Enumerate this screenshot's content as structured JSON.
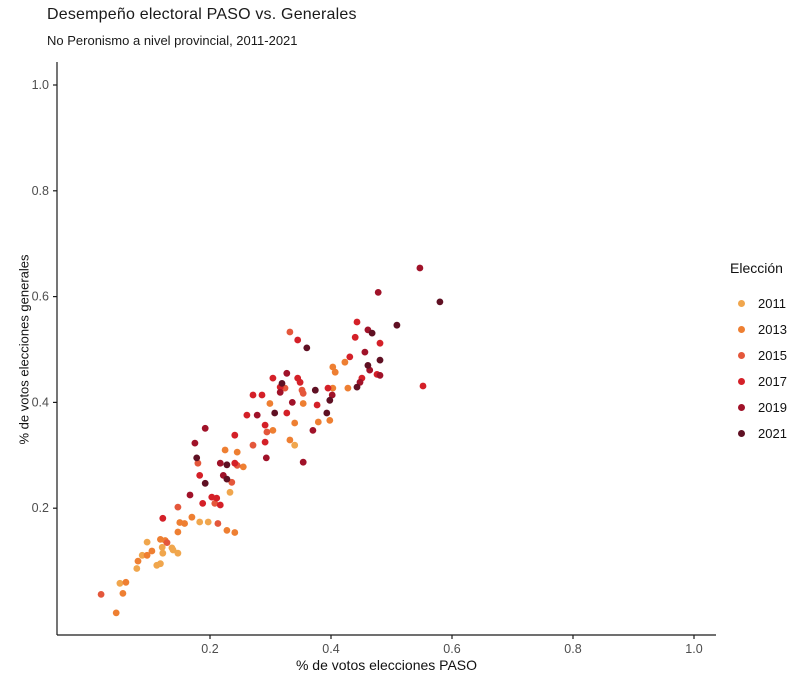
{
  "header": {
    "title": "Desempeño electoral PASO vs. Generales",
    "subtitle": "No Peronismo a nivel provincial, 2011-2021"
  },
  "chart_data": {
    "type": "scatter",
    "title": "Desempeño electoral PASO vs. Generales",
    "subtitle": "No Peronismo a nivel provincial, 2011-2021",
    "xlabel": "% de votos elecciones PASO",
    "ylabel": "% de votos elecciones generales",
    "xlim": [
      -0.05,
      1.04
    ],
    "ylim": [
      -0.04,
      1.04
    ],
    "x_ticks": [
      "0.2",
      "0.4",
      "0.6",
      "0.8",
      "1.0"
    ],
    "x_tick_values": [
      0.2,
      0.4,
      0.6,
      0.8,
      1.0
    ],
    "y_ticks": [
      "0.2",
      "0.4",
      "0.6",
      "0.8",
      "1.0"
    ],
    "y_tick_values": [
      0.2,
      0.4,
      0.6,
      0.8,
      1.0
    ],
    "grid": false,
    "legend_title": "Elección",
    "legend_position": "right",
    "axis_text_color": "#4d4d4d",
    "axis_line_color": "#1a1a1a",
    "series": [
      {
        "name": "2011",
        "color": "#F0A64D",
        "points": [
          [
            0.051,
            0.058
          ],
          [
            0.079,
            0.086
          ],
          [
            0.088,
            0.111
          ],
          [
            0.112,
            0.092
          ],
          [
            0.118,
            0.095
          ],
          [
            0.121,
            0.126
          ],
          [
            0.122,
            0.115
          ],
          [
            0.137,
            0.125
          ],
          [
            0.139,
            0.121
          ],
          [
            0.147,
            0.115
          ],
          [
            0.096,
            0.136
          ],
          [
            0.183,
            0.174
          ],
          [
            0.197,
            0.174
          ],
          [
            0.233,
            0.23
          ],
          [
            0.34,
            0.319
          ]
        ]
      },
      {
        "name": "2013",
        "color": "#EE7F32",
        "points": [
          [
            0.045,
            0.002
          ],
          [
            0.056,
            0.039
          ],
          [
            0.061,
            0.06
          ],
          [
            0.081,
            0.1
          ],
          [
            0.096,
            0.111
          ],
          [
            0.104,
            0.119
          ],
          [
            0.118,
            0.141
          ],
          [
            0.126,
            0.139
          ],
          [
            0.147,
            0.155
          ],
          [
            0.15,
            0.173
          ],
          [
            0.158,
            0.171
          ],
          [
            0.17,
            0.183
          ],
          [
            0.228,
            0.158
          ],
          [
            0.241,
            0.154
          ],
          [
            0.225,
            0.31
          ],
          [
            0.245,
            0.306
          ],
          [
            0.255,
            0.278
          ],
          [
            0.299,
            0.398
          ],
          [
            0.304,
            0.347
          ],
          [
            0.332,
            0.329
          ],
          [
            0.34,
            0.361
          ],
          [
            0.354,
            0.398
          ],
          [
            0.379,
            0.363
          ],
          [
            0.398,
            0.366
          ],
          [
            0.403,
            0.467
          ],
          [
            0.407,
            0.457
          ],
          [
            0.403,
            0.427
          ],
          [
            0.428,
            0.427
          ],
          [
            0.423,
            0.476
          ]
        ]
      },
      {
        "name": "2015",
        "color": "#E4573B",
        "points": [
          [
            0.02,
            0.037
          ],
          [
            0.129,
            0.135
          ],
          [
            0.147,
            0.202
          ],
          [
            0.213,
            0.171
          ],
          [
            0.18,
            0.285
          ],
          [
            0.208,
            0.209
          ],
          [
            0.236,
            0.249
          ],
          [
            0.245,
            0.281
          ],
          [
            0.271,
            0.319
          ],
          [
            0.294,
            0.344
          ],
          [
            0.324,
            0.427
          ],
          [
            0.332,
            0.533
          ],
          [
            0.352,
            0.423
          ],
          [
            0.354,
            0.417
          ]
        ]
      },
      {
        "name": "2017",
        "color": "#D42028",
        "points": [
          [
            0.122,
            0.181
          ],
          [
            0.183,
            0.262
          ],
          [
            0.188,
            0.209
          ],
          [
            0.203,
            0.221
          ],
          [
            0.211,
            0.219
          ],
          [
            0.217,
            0.206
          ],
          [
            0.241,
            0.338
          ],
          [
            0.241,
            0.285
          ],
          [
            0.261,
            0.376
          ],
          [
            0.271,
            0.414
          ],
          [
            0.286,
            0.414
          ],
          [
            0.291,
            0.325
          ],
          [
            0.291,
            0.357
          ],
          [
            0.304,
            0.446
          ],
          [
            0.316,
            0.429
          ],
          [
            0.327,
            0.38
          ],
          [
            0.345,
            0.518
          ],
          [
            0.345,
            0.446
          ],
          [
            0.349,
            0.438
          ],
          [
            0.377,
            0.395
          ],
          [
            0.395,
            0.427
          ],
          [
            0.431,
            0.486
          ],
          [
            0.44,
            0.523
          ],
          [
            0.443,
            0.552
          ],
          [
            0.451,
            0.446
          ],
          [
            0.476,
            0.453
          ],
          [
            0.481,
            0.512
          ],
          [
            0.552,
            0.431
          ]
        ]
      },
      {
        "name": "2019",
        "color": "#A01229",
        "points": [
          [
            0.167,
            0.225
          ],
          [
            0.175,
            0.323
          ],
          [
            0.192,
            0.351
          ],
          [
            0.217,
            0.285
          ],
          [
            0.222,
            0.262
          ],
          [
            0.278,
            0.376
          ],
          [
            0.293,
            0.295
          ],
          [
            0.316,
            0.419
          ],
          [
            0.327,
            0.455
          ],
          [
            0.336,
            0.4
          ],
          [
            0.354,
            0.287
          ],
          [
            0.37,
            0.347
          ],
          [
            0.402,
            0.414
          ],
          [
            0.448,
            0.438
          ],
          [
            0.456,
            0.495
          ],
          [
            0.461,
            0.537
          ],
          [
            0.464,
            0.461
          ],
          [
            0.478,
            0.608
          ],
          [
            0.481,
            0.451
          ],
          [
            0.547,
            0.654
          ]
        ]
      },
      {
        "name": "2021",
        "color": "#5F1023",
        "points": [
          [
            0.178,
            0.295
          ],
          [
            0.192,
            0.247
          ],
          [
            0.228,
            0.282
          ],
          [
            0.228,
            0.255
          ],
          [
            0.307,
            0.38
          ],
          [
            0.319,
            0.436
          ],
          [
            0.36,
            0.503
          ],
          [
            0.374,
            0.423
          ],
          [
            0.393,
            0.38
          ],
          [
            0.398,
            0.404
          ],
          [
            0.443,
            0.429
          ],
          [
            0.461,
            0.47
          ],
          [
            0.468,
            0.531
          ],
          [
            0.481,
            0.48
          ],
          [
            0.509,
            0.546
          ],
          [
            0.58,
            0.59
          ]
        ]
      }
    ]
  }
}
